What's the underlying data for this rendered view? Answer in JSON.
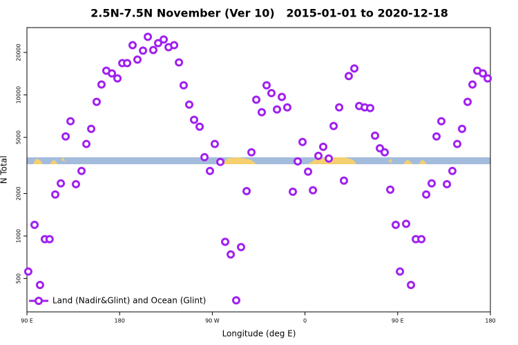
{
  "chart_data": {
    "type": "scatter",
    "title": "2.5N-7.5N November (Ver 10)   2015-01-01 to 2020-12-18",
    "x_label": "Longitude (deg E)",
    "y_label": "N Total",
    "xlim": [
      90,
      540
    ],
    "ylim": [
      290,
      30000
    ],
    "yscale": "log",
    "legend": "lower left",
    "xticks": [
      {
        "value": 90,
        "label": "90 E"
      },
      180,
      {
        "value": 270,
        "label": "90 W"
      },
      {
        "value": 360,
        "label": "0"
      },
      {
        "value": 450,
        "label": "90 E"
      },
      {
        "value": 540,
        "label": "180"
      }
    ],
    "yticks": [
      500,
      1000,
      2000,
      5000,
      10000,
      20000
    ],
    "series": [
      {
        "name": "Land (Nadir&Glint) and Ocean (Glint)",
        "color": "#a020f0",
        "x": [
          91.3,
          97.4,
          102.7,
          107.4,
          112,
          117.5,
          122.9,
          127.6,
          132.3,
          137.6,
          143,
          147.7,
          152.4,
          157.7,
          162.4,
          167.1,
          172.5,
          177.9,
          182.6,
          187.3,
          192.6,
          197.3,
          202.7,
          207.4,
          212.7,
          217.4,
          222.8,
          227.5,
          232.9,
          237.6,
          242.2,
          247.6,
          252.3,
          257.7,
          262.4,
          267.7,
          272.4,
          277.8,
          282.5,
          287.9,
          293.2,
          297.9,
          303.3,
          308,
          312.7,
          318,
          322.7,
          327.4,
          332.8,
          337.5,
          342.8,
          348.2,
          352.9,
          357.6,
          363,
          367.7,
          373,
          377.7,
          383.1,
          387.8,
          393.2,
          397.8,
          402.5,
          407.9,
          412.6,
          418,
          423.3,
          428,
          432.7,
          437.4,
          442.8,
          448.1,
          452.2,
          458.2,
          462.9,
          467.6,
          473,
          477.7,
          483,
          487.7,
          492.4,
          497.8,
          503.1,
          507.8,
          512.5,
          517.9,
          522.6,
          527.3,
          532.7,
          537.4
        ],
        "values": [
          560,
          1200,
          450,
          950,
          950,
          1970,
          2360,
          5080,
          6510,
          2330,
          2890,
          4490,
          5750,
          8930,
          11850,
          14850,
          14200,
          13100,
          16800,
          16800,
          22500,
          17800,
          20600,
          25800,
          20800,
          23300,
          24700,
          21800,
          22500,
          17000,
          11700,
          8540,
          6660,
          5950,
          3620,
          2890,
          4490,
          3350,
          910,
          740,
          350,
          835,
          2080,
          3920,
          9250,
          7540,
          11700,
          10300,
          7890,
          9670,
          8160,
          2060,
          3380,
          4640,
          2860,
          2110,
          3700,
          4290,
          3540,
          6020,
          8160,
          2470,
          13600,
          15400,
          8350,
          8160,
          8070,
          5140,
          4190,
          3920,
          2130,
          1200,
          560,
          1220,
          450,
          950,
          950,
          1970,
          2360,
          5080,
          6510,
          2330,
          2890,
          4490,
          5750,
          8930,
          11850,
          14850,
          14200,
          13100
        ]
      }
    ]
  }
}
